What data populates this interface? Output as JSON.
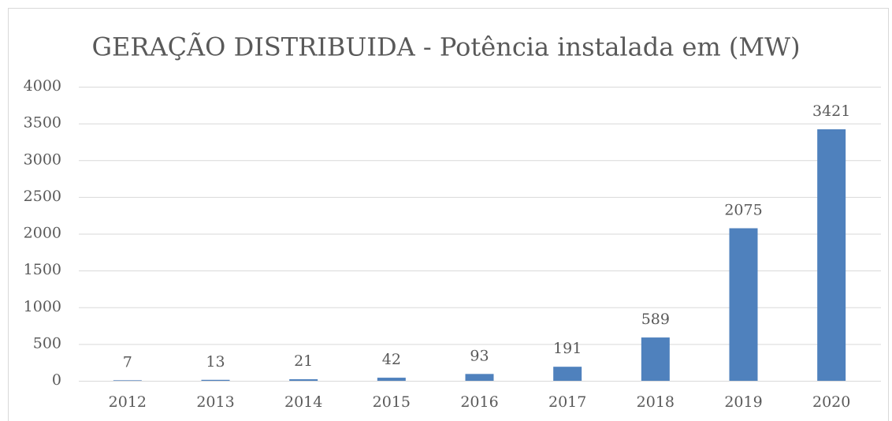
{
  "chart_data": {
    "type": "bar",
    "title": "GERAÇÃO DISTRIBUIDA - Potência instalada em (MW)",
    "categories": [
      "2012",
      "2013",
      "2014",
      "2015",
      "2016",
      "2017",
      "2018",
      "2019",
      "2020"
    ],
    "values": [
      7,
      13,
      21,
      42,
      93,
      191,
      589,
      2075,
      3421
    ],
    "color": "#4f81bd",
    "ylim": [
      0,
      4000
    ],
    "yticks": [
      0,
      500,
      1000,
      1500,
      2000,
      2500,
      3000,
      3500,
      4000
    ],
    "grid": true
  }
}
